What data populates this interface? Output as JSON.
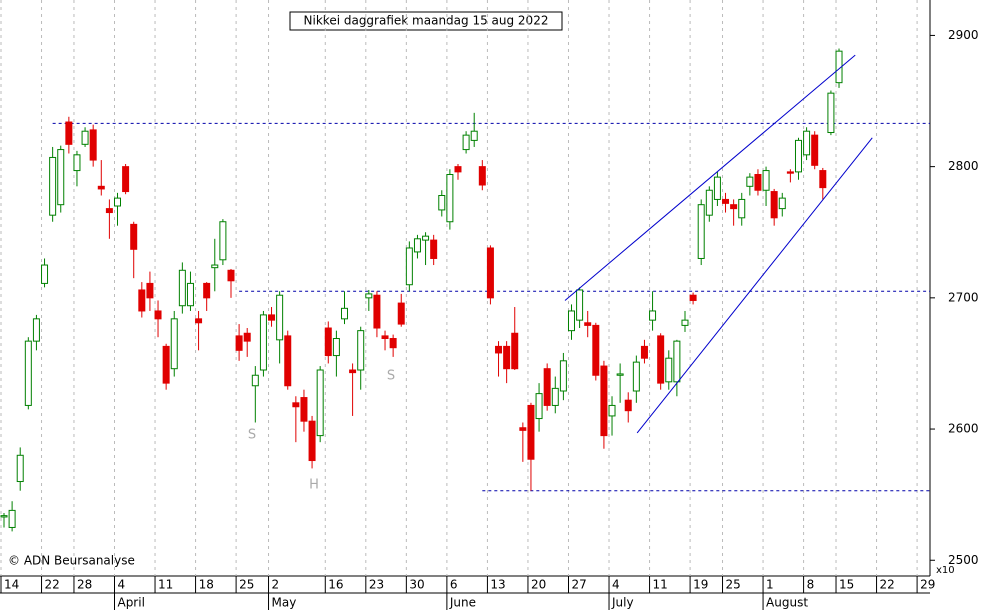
{
  "chart_data": {
    "type": "candlestick",
    "title": "Nikkei daggrafiek maandag 15 aug 2022",
    "source": "© ADN Beursanalyse",
    "axis_unit": "x10",
    "categories": [
      "14",
      null,
      null,
      null,
      null,
      "22",
      null,
      null,
      null,
      "28",
      null,
      null,
      null,
      null,
      "4",
      null,
      null,
      null,
      null,
      "11",
      null,
      null,
      null,
      null,
      "18",
      null,
      null,
      null,
      null,
      "25",
      null,
      null,
      null,
      "2",
      null,
      null,
      null,
      null,
      null,
      null,
      "16",
      null,
      null,
      null,
      null,
      "23",
      null,
      null,
      null,
      null,
      "30",
      null,
      null,
      null,
      null,
      "6",
      null,
      null,
      null,
      null,
      "13",
      null,
      null,
      null,
      null,
      "20",
      null,
      null,
      null,
      null,
      "27",
      null,
      null,
      null,
      null,
      "4",
      null,
      null,
      null,
      null,
      "11",
      null,
      null,
      null,
      null,
      "19",
      null,
      null,
      null,
      "25",
      null,
      null,
      null,
      null,
      "1",
      null,
      null,
      null,
      null,
      "8",
      null,
      null,
      null,
      "15",
      null,
      null,
      null,
      null,
      "22",
      null,
      null,
      null,
      null,
      "29"
    ],
    "month_categories": [
      null,
      null,
      null,
      null,
      null,
      null,
      null,
      null,
      null,
      null,
      null,
      null,
      null,
      null,
      "April",
      null,
      null,
      null,
      null,
      null,
      null,
      null,
      null,
      null,
      null,
      null,
      null,
      null,
      null,
      null,
      null,
      null,
      null,
      "May",
      null,
      null,
      null,
      null,
      null,
      null,
      null,
      null,
      null,
      null,
      null,
      null,
      null,
      null,
      null,
      null,
      null,
      null,
      null,
      null,
      null,
      "June",
      null,
      null,
      null,
      null,
      null,
      null,
      null,
      null,
      null,
      null,
      null,
      null,
      null,
      null,
      null,
      null,
      null,
      null,
      null,
      "July",
      null,
      null,
      null,
      null,
      null,
      null,
      null,
      null,
      null,
      null,
      null,
      null,
      null,
      null,
      null,
      null,
      null,
      null,
      "August",
      null,
      null,
      null,
      null,
      null,
      null,
      null,
      null,
      null,
      null,
      null,
      null,
      null,
      null,
      null,
      null,
      null,
      null,
      null
    ],
    "open": [
      2533,
      2525,
      2560,
      2618,
      2667,
      2711,
      2763,
      2771,
      2834,
      2797,
      2817,
      2828,
      2785,
      2768,
      2770,
      2800,
      2756,
      2706,
      2711,
      2690,
      2663,
      2646,
      2694,
      2694,
      2684,
      2711,
      2723,
      2729,
      2721,
      2671,
      2673,
      2633,
      2645,
      2687,
      2668,
      2671,
      2620,
      2624,
      2606,
      2595,
      2677,
      2656,
      2684,
      2645,
      2645,
      2700,
      2702,
      2671,
      2669,
      2696,
      2710,
      2735,
      2744,
      2744,
      2767,
      2758,
      2800,
      2813,
      2820,
      2800,
      2738,
      2663,
      2663,
      2673,
      2601,
      2618,
      2608,
      2646,
      2618,
      2629,
      2675,
      2683,
      2681,
      2679,
      2648,
      2610,
      2641,
      2622,
      2629,
      2663,
      2683,
      2671,
      2636,
      2636,
      2679,
      2702,
      2730,
      2763,
      2775,
      2775,
      2771,
      2761,
      2785,
      2794,
      2782,
      2781,
      2768,
      2796,
      2796,
      2809,
      2824,
      2797,
      2826,
      2864,
      null,
      null,
      null,
      null,
      null,
      null,
      null,
      null,
      null,
      null
    ],
    "high": [
      2536,
      2545,
      2586,
      2670,
      2687,
      2730,
      2815,
      2816,
      2838,
      2812,
      2830,
      2832,
      2805,
      2775,
      2780,
      2802,
      2758,
      2712,
      2720,
      2698,
      2665,
      2690,
      2727,
      2720,
      2690,
      2712,
      2745,
      2760,
      2722,
      2680,
      2677,
      2648,
      2690,
      2693,
      2705,
      2675,
      2625,
      2630,
      2610,
      2648,
      2682,
      2675,
      2705,
      2650,
      2678,
      2706,
      2705,
      2675,
      2672,
      2703,
      2743,
      2748,
      2750,
      2748,
      2782,
      2798,
      2802,
      2827,
      2841,
      2805,
      2740,
      2667,
      2667,
      2693,
      2605,
      2620,
      2635,
      2650,
      2640,
      2658,
      2695,
      2708,
      2690,
      2681,
      2652,
      2625,
      2650,
      2628,
      2656,
      2668,
      2705,
      2673,
      2660,
      2668,
      2690,
      2704,
      2775,
      2785,
      2796,
      2780,
      2775,
      2780,
      2795,
      2798,
      2800,
      2783,
      2780,
      2798,
      2822,
      2830,
      2827,
      2799,
      2858,
      2890,
      null,
      null,
      null,
      null,
      null,
      null,
      null,
      null,
      null,
      null
    ],
    "low": [
      2525,
      2522,
      2553,
      2615,
      2660,
      2708,
      2758,
      2765,
      2810,
      2785,
      2815,
      2800,
      2778,
      2745,
      2755,
      2779,
      2715,
      2685,
      2690,
      2670,
      2630,
      2640,
      2688,
      2690,
      2660,
      2690,
      2705,
      2725,
      2700,
      2652,
      2655,
      2605,
      2640,
      2678,
      2650,
      2630,
      2590,
      2598,
      2570,
      2590,
      2650,
      2640,
      2680,
      2610,
      2630,
      2690,
      2670,
      2660,
      2655,
      2678,
      2705,
      2730,
      2725,
      2725,
      2762,
      2752,
      2790,
      2810,
      2815,
      2782,
      2695,
      2640,
      2635,
      2645,
      2575,
      2553,
      2598,
      2614,
      2612,
      2622,
      2668,
      2677,
      2670,
      2637,
      2585,
      2595,
      2620,
      2605,
      2620,
      2650,
      2675,
      2630,
      2630,
      2625,
      2674,
      2695,
      2725,
      2758,
      2770,
      2765,
      2755,
      2755,
      2778,
      2778,
      2770,
      2755,
      2762,
      2788,
      2790,
      2805,
      2798,
      2775,
      2824,
      2860,
      null,
      null,
      null,
      null,
      null,
      null,
      null,
      null,
      null,
      null
    ],
    "close": [
      2534,
      2538,
      2580,
      2667,
      2684,
      2725,
      2807,
      2813,
      2817,
      2809,
      2827,
      2805,
      2783,
      2765,
      2776,
      2781,
      2737,
      2690,
      2700,
      2684,
      2635,
      2684,
      2721,
      2711,
      2681,
      2700,
      2725,
      2758,
      2713,
      2660,
      2667,
      2641,
      2687,
      2683,
      2702,
      2633,
      2617,
      2606,
      2576,
      2645,
      2656,
      2669,
      2692,
      2643,
      2675,
      2703,
      2677,
      2669,
      2662,
      2680,
      2738,
      2745,
      2747,
      2730,
      2778,
      2794,
      2796,
      2824,
      2827,
      2786,
      2700,
      2658,
      2646,
      2646,
      2599,
      2577,
      2627,
      2618,
      2631,
      2652,
      2690,
      2706,
      2679,
      2641,
      2595,
      2618,
      2642,
      2614,
      2651,
      2654,
      2690,
      2635,
      2654,
      2667,
      2683,
      2698,
      2771,
      2782,
      2792,
      2772,
      2768,
      2775,
      2792,
      2782,
      2797,
      2761,
      2776,
      2795,
      2820,
      2827,
      2801,
      2784,
      2856,
      2888,
      null,
      null,
      null,
      null,
      null,
      null,
      null,
      null,
      null,
      null
    ],
    "up_color": "#008000",
    "down_color": "#e00000",
    "ylim": [
      2488,
      2927
    ],
    "yticks": [
      2500,
      2600,
      2700,
      2800,
      2900
    ],
    "levels": [
      {
        "value": 2833,
        "from": 6
      },
      {
        "value": 2705,
        "from": 29
      },
      {
        "value": 2553,
        "from": 59
      }
    ],
    "trendlines": [
      {
        "x": [
          69.2,
          105
        ],
        "y": [
          2698,
          2885
        ]
      },
      {
        "x": [
          78.1,
          107.1
        ],
        "y": [
          2597,
          2822
        ]
      }
    ],
    "annotations": [
      "S",
      "H",
      "S"
    ]
  }
}
